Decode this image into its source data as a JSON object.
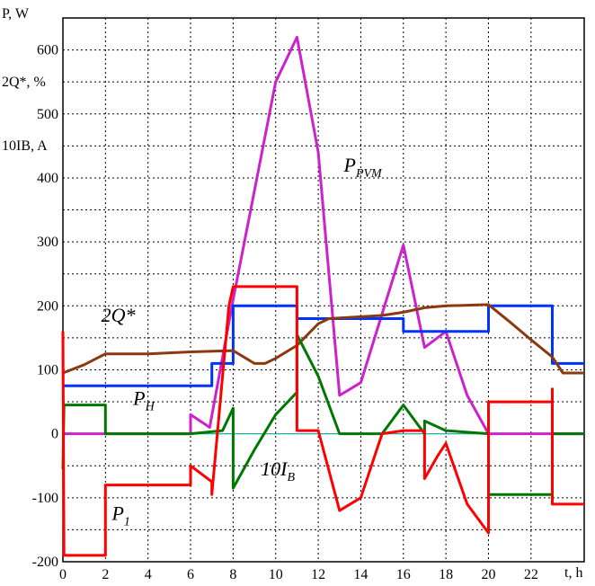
{
  "chart_data": {
    "type": "line",
    "axis_labels": {
      "y_lines": [
        "P, W",
        "2Q*, %",
        "10IB, A"
      ],
      "x": "t, h"
    },
    "xlim": [
      0,
      24.5
    ],
    "ylim": [
      -200,
      650
    ],
    "x_ticks": [
      0,
      2,
      4,
      6,
      8,
      10,
      12,
      14,
      16,
      18,
      20,
      22
    ],
    "y_ticks": [
      -200,
      -100,
      0,
      100,
      200,
      300,
      400,
      500,
      600
    ],
    "grid": true,
    "series": [
      {
        "name": "P_PVM",
        "color": "#cc22cc",
        "points": [
          [
            0,
            0
          ],
          [
            6,
            0
          ],
          [
            6,
            30
          ],
          [
            6.9,
            10
          ],
          [
            8,
            210
          ],
          [
            9,
            380
          ],
          [
            10,
            550
          ],
          [
            11,
            620
          ],
          [
            12,
            440
          ],
          [
            13,
            60
          ],
          [
            14,
            80
          ],
          [
            16,
            295
          ],
          [
            17,
            135
          ],
          [
            18,
            160
          ],
          [
            19,
            60
          ],
          [
            20,
            0
          ],
          [
            24.5,
            0
          ]
        ]
      },
      {
        "name": "P_H",
        "color": "#0033ff",
        "points": [
          [
            0,
            75
          ],
          [
            7,
            75
          ],
          [
            7,
            110
          ],
          [
            8,
            110
          ],
          [
            8,
            200
          ],
          [
            11,
            200
          ],
          [
            11,
            180
          ],
          [
            16,
            180
          ],
          [
            16,
            160
          ],
          [
            20,
            160
          ],
          [
            20,
            200
          ],
          [
            23,
            200
          ],
          [
            23,
            110
          ],
          [
            24.5,
            110
          ]
        ]
      },
      {
        "name": "2Q*",
        "color": "#8b3a0f",
        "points": [
          [
            0,
            95
          ],
          [
            1,
            108
          ],
          [
            2,
            125
          ],
          [
            4,
            125
          ],
          [
            6,
            128
          ],
          [
            8,
            130
          ],
          [
            8.5,
            120
          ],
          [
            9,
            110
          ],
          [
            9.5,
            110
          ],
          [
            10,
            118
          ],
          [
            11,
            138
          ],
          [
            11.5,
            155
          ],
          [
            12,
            172
          ],
          [
            12.5,
            180
          ],
          [
            14,
            183
          ],
          [
            15,
            185
          ],
          [
            16,
            190
          ],
          [
            17,
            197
          ],
          [
            18,
            200
          ],
          [
            20,
            202
          ],
          [
            21,
            175
          ],
          [
            22,
            147
          ],
          [
            23,
            120
          ],
          [
            23.5,
            95
          ],
          [
            24.5,
            95
          ]
        ]
      },
      {
        "name": "P_1",
        "color": "#ff0000",
        "points": [
          [
            0,
            160
          ],
          [
            0.05,
            -190
          ],
          [
            2,
            -190
          ],
          [
            2,
            -80
          ],
          [
            6,
            -80
          ],
          [
            6,
            -50
          ],
          [
            7,
            -75
          ],
          [
            7,
            -95
          ],
          [
            7.8,
            200
          ],
          [
            8,
            230
          ],
          [
            11,
            230
          ],
          [
            11,
            5
          ],
          [
            12,
            5
          ],
          [
            13,
            -120
          ],
          [
            14,
            -100
          ],
          [
            15,
            0
          ],
          [
            16,
            5
          ],
          [
            17,
            5
          ],
          [
            17,
            -70
          ],
          [
            17.6,
            -35
          ],
          [
            18,
            -15
          ],
          [
            19,
            -110
          ],
          [
            20,
            -155
          ],
          [
            20,
            50
          ],
          [
            23,
            50
          ],
          [
            23,
            70
          ],
          [
            23,
            -110
          ],
          [
            24.5,
            -110
          ]
        ]
      },
      {
        "name": "10I_B",
        "color": "#007700",
        "points": [
          [
            0,
            -55
          ],
          [
            0.05,
            45
          ],
          [
            2,
            45
          ],
          [
            2,
            0
          ],
          [
            6,
            0
          ],
          [
            7.5,
            5
          ],
          [
            8,
            40
          ],
          [
            8,
            -85
          ],
          [
            9,
            -25
          ],
          [
            10,
            30
          ],
          [
            11,
            65
          ],
          [
            11,
            155
          ],
          [
            12,
            90
          ],
          [
            13,
            0
          ],
          [
            15,
            0
          ],
          [
            16,
            45
          ],
          [
            17,
            0
          ],
          [
            17,
            20
          ],
          [
            18,
            5
          ],
          [
            20,
            0
          ],
          [
            20,
            -95
          ],
          [
            23,
            -95
          ],
          [
            23,
            0
          ],
          [
            24.5,
            0
          ]
        ]
      },
      {
        "name": "zero",
        "color": "#20b2aa",
        "points": [
          [
            0,
            0
          ],
          [
            24.5,
            0
          ]
        ]
      }
    ],
    "annotations": [
      {
        "text": "P",
        "sub": "PVM",
        "x": 13.2,
        "y": 410
      },
      {
        "text": "2Q*",
        "sub": "",
        "x": 1.8,
        "y": 175
      },
      {
        "text": "P",
        "sub": "H",
        "x": 3.3,
        "y": 45
      },
      {
        "text": "10I",
        "sub": "B",
        "x": 9.3,
        "y": -65
      },
      {
        "text": "P",
        "sub": "1",
        "x": 2.3,
        "y": -135
      }
    ]
  }
}
